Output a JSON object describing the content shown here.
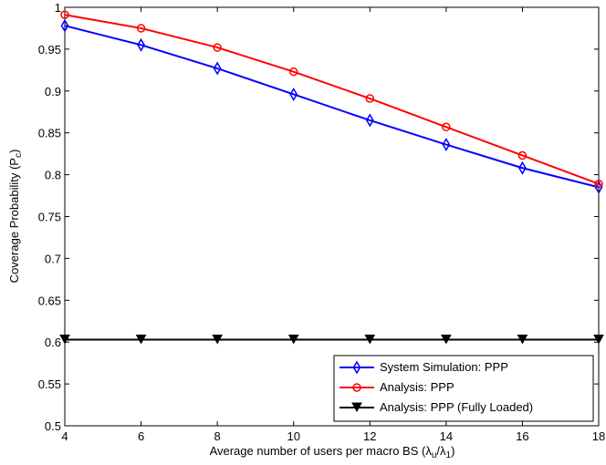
{
  "chart_data": {
    "type": "line",
    "title": "",
    "xlabel": "Average number of users per macro BS (λu/λ1)",
    "xlabel_parts": {
      "prefix": "Average number of users per macro BS (",
      "sym1": "λ",
      "sub1": "u",
      "slash": "/",
      "sym2": "λ",
      "sub2": "1",
      "suffix": ")"
    },
    "ylabel": "Coverage Probability (Pc)",
    "ylabel_parts": {
      "main": "Coverage Probability (P",
      "sub": "c",
      "close": ")"
    },
    "xlim": [
      4,
      18
    ],
    "ylim": [
      0.5,
      1
    ],
    "x": [
      4,
      6,
      8,
      10,
      12,
      14,
      16,
      18
    ],
    "xticks": [
      "4",
      "6",
      "8",
      "10",
      "12",
      "14",
      "16",
      "18"
    ],
    "yticks": [
      "0.5",
      "0.55",
      "0.6",
      "0.65",
      "0.7",
      "0.75",
      "0.8",
      "0.85",
      "0.9",
      "0.95",
      "1"
    ],
    "ytick_values": [
      0.5,
      0.55,
      0.6,
      0.65,
      0.7,
      0.75,
      0.8,
      0.85,
      0.9,
      0.95,
      1.0
    ],
    "grid": false,
    "legend_position": "bottom-right",
    "series": [
      {
        "name": "System Simulation: PPP",
        "color": "#0000ff",
        "marker": "diamond",
        "values": [
          0.978,
          0.955,
          0.927,
          0.896,
          0.865,
          0.836,
          0.808,
          0.785
        ]
      },
      {
        "name": "Analysis: PPP",
        "color": "#ff0000",
        "marker": "circle",
        "values": [
          0.991,
          0.975,
          0.952,
          0.923,
          0.891,
          0.857,
          0.823,
          0.789
        ]
      },
      {
        "name": "Analysis: PPP (Fully Loaded)",
        "color": "#000000",
        "marker": "triangle-down",
        "values": [
          0.603,
          0.603,
          0.603,
          0.603,
          0.603,
          0.603,
          0.603,
          0.603
        ]
      }
    ]
  }
}
